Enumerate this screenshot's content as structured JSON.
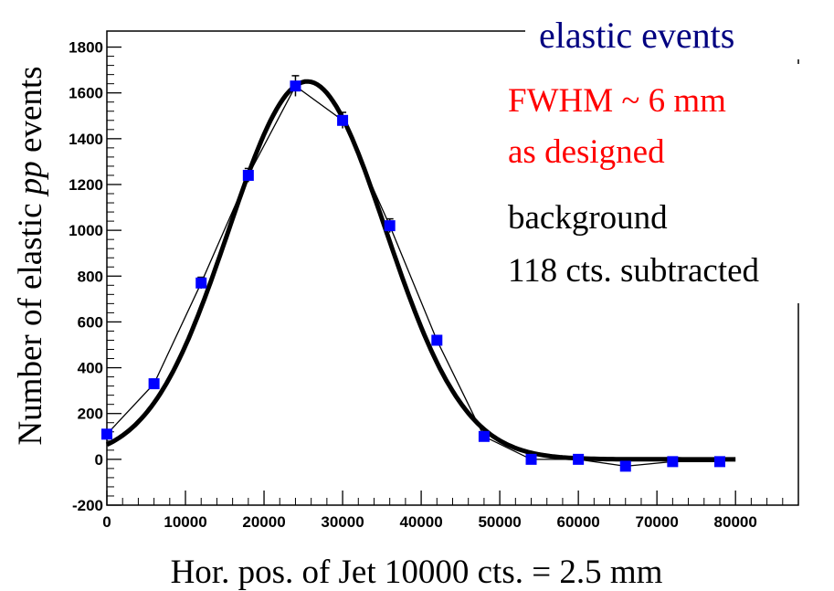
{
  "chart_data": {
    "type": "scatter",
    "xlabel": "Hor. pos. of Jet 10000 cts. = 2.5 mm",
    "ylabel_prefix": "Number of elastic ",
    "ylabel_italic": "pp",
    "ylabel_suffix": " events",
    "xlim": [
      0,
      88000
    ],
    "ylim": [
      -200,
      1870
    ],
    "x_ticks": [
      0,
      10000,
      20000,
      30000,
      40000,
      50000,
      60000,
      70000,
      80000
    ],
    "y_ticks": [
      -200,
      0,
      200,
      400,
      600,
      800,
      1000,
      1200,
      1400,
      1600,
      1800
    ],
    "grid": false,
    "colors": {
      "data_points": "#0000ff",
      "fit_curve": "#000000",
      "title": "#000080",
      "annotation_red": "#ff0000"
    },
    "series": [
      {
        "values_x": [
          0,
          6000,
          12000,
          18000,
          24000,
          30000,
          36000,
          42000,
          48000,
          54000,
          60000,
          66000,
          72000,
          78000
        ],
        "values_y": [
          110,
          330,
          770,
          1240,
          1630,
          1480,
          1020,
          520,
          100,
          0,
          0,
          -30,
          -10,
          -10
        ],
        "errors_y": [
          15,
          20,
          25,
          30,
          45,
          35,
          30,
          20,
          15,
          10,
          10,
          10,
          10,
          10
        ]
      }
    ],
    "fit": {
      "type": "gaussian",
      "amplitude": 1650,
      "mean": 25500,
      "sigma": 10000
    },
    "annotations": {
      "title": "elastic events",
      "fwhm_line1": "FWHM ~ 6 mm",
      "fwhm_line2": "as designed",
      "bg_line1": "background",
      "bg_line2": "118 cts. subtracted"
    }
  }
}
